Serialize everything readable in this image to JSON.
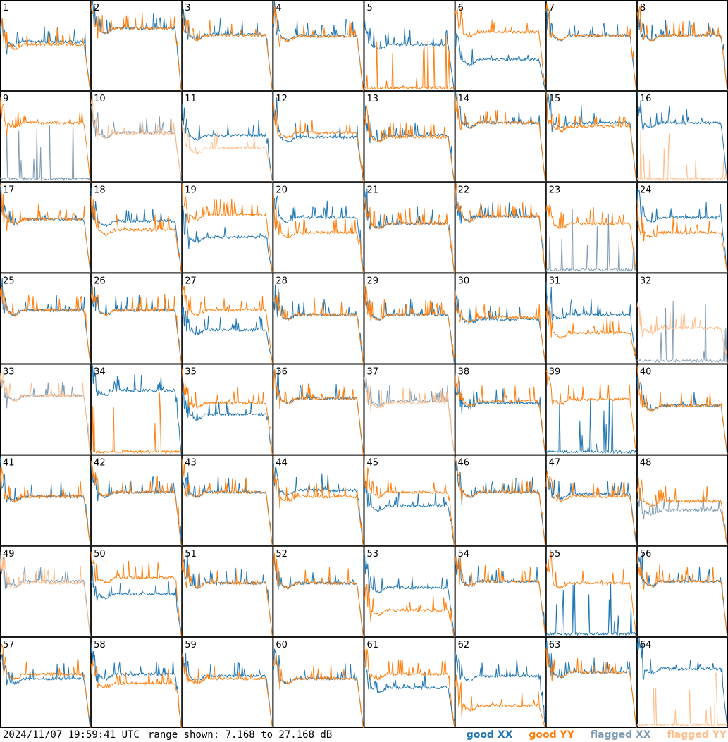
{
  "footer": {
    "timestamp": "2024/11/07 19:59:41 UTC",
    "range_label": "range shown: 7.168 to 27.168 dB"
  },
  "legend": [
    {
      "label": "good XX",
      "color": "#1f77b4"
    },
    {
      "label": "good YY",
      "color": "#ff7f0e"
    },
    {
      "label": "flagged XX",
      "color": "#7f9bb3"
    },
    {
      "label": "flagged YY",
      "color": "#ffbf8c"
    }
  ],
  "chart_data": {
    "type": "line",
    "grid": "8x8 small multiples",
    "xlabel": "",
    "ylabel": "",
    "ylim": [
      7.168,
      27.168
    ],
    "units": "dB",
    "panels": [
      {
        "id": "1",
        "xx": "good",
        "yy": "good",
        "xx_level": 0.55,
        "yy_level": 0.52,
        "dropout": []
      },
      {
        "id": "2",
        "xx": "good",
        "yy": "good",
        "xx_level": 0.7,
        "yy_level": 0.7,
        "dropout": []
      },
      {
        "id": "3",
        "xx": "good",
        "yy": "good",
        "xx_level": 0.63,
        "yy_level": 0.62,
        "dropout": []
      },
      {
        "id": "4",
        "xx": "good",
        "yy": "good",
        "xx_level": 0.62,
        "yy_level": 0.61,
        "dropout": []
      },
      {
        "id": "5",
        "xx": "good",
        "yy": "good",
        "xx_level": 0.52,
        "yy_level": 0.0,
        "dropout": [
          "yy"
        ]
      },
      {
        "id": "6",
        "xx": "good",
        "yy": "good",
        "xx_level": 0.35,
        "yy_level": 0.66,
        "dropout": []
      },
      {
        "id": "7",
        "xx": "good",
        "yy": "good",
        "xx_level": 0.62,
        "yy_level": 0.62,
        "dropout": []
      },
      {
        "id": "8",
        "xx": "good",
        "yy": "good",
        "xx_level": 0.62,
        "yy_level": 0.62,
        "dropout": []
      },
      {
        "id": "9",
        "xx": "flagged",
        "yy": "good",
        "xx_level": 0.0,
        "yy_level": 0.66,
        "dropout": [
          "xx"
        ]
      },
      {
        "id": "10",
        "xx": "flagged",
        "yy": "flagged",
        "xx_level": 0.55,
        "yy_level": 0.54,
        "dropout": []
      },
      {
        "id": "11",
        "xx": "good",
        "yy": "flagged",
        "xx_level": 0.52,
        "yy_level": 0.38,
        "dropout": []
      },
      {
        "id": "12",
        "xx": "good",
        "yy": "good",
        "xx_level": 0.5,
        "yy_level": 0.55,
        "dropout": []
      },
      {
        "id": "13",
        "xx": "good",
        "yy": "good",
        "xx_level": 0.52,
        "yy_level": 0.5,
        "dropout": []
      },
      {
        "id": "14",
        "xx": "good",
        "yy": "good",
        "xx_level": 0.66,
        "yy_level": 0.66,
        "dropout": []
      },
      {
        "id": "15",
        "xx": "good",
        "yy": "good",
        "xx_level": 0.66,
        "yy_level": 0.62,
        "dropout": []
      },
      {
        "id": "16",
        "xx": "good",
        "yy": "flagged",
        "xx_level": 0.66,
        "yy_level": 0.0,
        "dropout": [
          "yy"
        ]
      },
      {
        "id": "17",
        "xx": "good",
        "yy": "good",
        "xx_level": 0.6,
        "yy_level": 0.6,
        "dropout": []
      },
      {
        "id": "18",
        "xx": "good",
        "yy": "good",
        "xx_level": 0.58,
        "yy_level": 0.48,
        "dropout": []
      },
      {
        "id": "19",
        "xx": "good",
        "yy": "good",
        "xx_level": 0.4,
        "yy_level": 0.65,
        "dropout": []
      },
      {
        "id": "20",
        "xx": "good",
        "yy": "good",
        "xx_level": 0.62,
        "yy_level": 0.45,
        "dropout": []
      },
      {
        "id": "21",
        "xx": "good",
        "yy": "good",
        "xx_level": 0.55,
        "yy_level": 0.55,
        "dropout": []
      },
      {
        "id": "22",
        "xx": "good",
        "yy": "good",
        "xx_level": 0.63,
        "yy_level": 0.63,
        "dropout": []
      },
      {
        "id": "23",
        "xx": "flagged",
        "yy": "good",
        "xx_level": 0.0,
        "yy_level": 0.55,
        "dropout": [
          "xx"
        ]
      },
      {
        "id": "24",
        "xx": "good",
        "yy": "good",
        "xx_level": 0.62,
        "yy_level": 0.45,
        "dropout": []
      },
      {
        "id": "25",
        "xx": "good",
        "yy": "good",
        "xx_level": 0.6,
        "yy_level": 0.6,
        "dropout": []
      },
      {
        "id": "26",
        "xx": "good",
        "yy": "good",
        "xx_level": 0.6,
        "yy_level": 0.6,
        "dropout": []
      },
      {
        "id": "27",
        "xx": "good",
        "yy": "good",
        "xx_level": 0.38,
        "yy_level": 0.6,
        "dropout": []
      },
      {
        "id": "28",
        "xx": "good",
        "yy": "good",
        "xx_level": 0.55,
        "yy_level": 0.55,
        "dropout": []
      },
      {
        "id": "29",
        "xx": "good",
        "yy": "good",
        "xx_level": 0.55,
        "yy_level": 0.55,
        "dropout": []
      },
      {
        "id": "30",
        "xx": "good",
        "yy": "good",
        "xx_level": 0.5,
        "yy_level": 0.52,
        "dropout": []
      },
      {
        "id": "31",
        "xx": "good",
        "yy": "good",
        "xx_level": 0.55,
        "yy_level": 0.35,
        "dropout": []
      },
      {
        "id": "32",
        "xx": "flagged",
        "yy": "flagged",
        "xx_level": 0.0,
        "yy_level": 0.4,
        "dropout": [
          "xx"
        ]
      },
      {
        "id": "33",
        "xx": "flagged",
        "yy": "flagged",
        "xx_level": 0.66,
        "yy_level": 0.66,
        "dropout": []
      },
      {
        "id": "34",
        "xx": "good",
        "yy": "good",
        "xx_level": 0.72,
        "yy_level": 0.0,
        "dropout": [
          "yy"
        ]
      },
      {
        "id": "35",
        "xx": "good",
        "yy": "good",
        "xx_level": 0.45,
        "yy_level": 0.58,
        "dropout": []
      },
      {
        "id": "36",
        "xx": "good",
        "yy": "good",
        "xx_level": 0.63,
        "yy_level": 0.63,
        "dropout": []
      },
      {
        "id": "37",
        "xx": "flagged",
        "yy": "flagged",
        "xx_level": 0.6,
        "yy_level": 0.58,
        "dropout": []
      },
      {
        "id": "38",
        "xx": "good",
        "yy": "good",
        "xx_level": 0.58,
        "yy_level": 0.6,
        "dropout": []
      },
      {
        "id": "39",
        "xx": "good",
        "yy": "good",
        "xx_level": 0.0,
        "yy_level": 0.62,
        "dropout": [
          "xx"
        ]
      },
      {
        "id": "40",
        "xx": "good",
        "yy": "good",
        "xx_level": 0.55,
        "yy_level": 0.55,
        "dropout": []
      },
      {
        "id": "41",
        "xx": "good",
        "yy": "good",
        "xx_level": 0.55,
        "yy_level": 0.55,
        "dropout": []
      },
      {
        "id": "42",
        "xx": "good",
        "yy": "good",
        "xx_level": 0.6,
        "yy_level": 0.6,
        "dropout": []
      },
      {
        "id": "43",
        "xx": "good",
        "yy": "good",
        "xx_level": 0.6,
        "yy_level": 0.6,
        "dropout": []
      },
      {
        "id": "44",
        "xx": "good",
        "yy": "good",
        "xx_level": 0.62,
        "yy_level": 0.55,
        "dropout": []
      },
      {
        "id": "45",
        "xx": "good",
        "yy": "good",
        "xx_level": 0.45,
        "yy_level": 0.6,
        "dropout": []
      },
      {
        "id": "46",
        "xx": "good",
        "yy": "good",
        "xx_level": 0.6,
        "yy_level": 0.6,
        "dropout": []
      },
      {
        "id": "47",
        "xx": "good",
        "yy": "good",
        "xx_level": 0.58,
        "yy_level": 0.55,
        "dropout": []
      },
      {
        "id": "48",
        "xx": "flagged",
        "yy": "good",
        "xx_level": 0.4,
        "yy_level": 0.5,
        "dropout": []
      },
      {
        "id": "49",
        "xx": "flagged",
        "yy": "flagged",
        "xx_level": 0.62,
        "yy_level": 0.6,
        "dropout": []
      },
      {
        "id": "50",
        "xx": "good",
        "yy": "good",
        "xx_level": 0.48,
        "yy_level": 0.66,
        "dropout": []
      },
      {
        "id": "51",
        "xx": "good",
        "yy": "good",
        "xx_level": 0.6,
        "yy_level": 0.6,
        "dropout": []
      },
      {
        "id": "52",
        "xx": "good",
        "yy": "good",
        "xx_level": 0.6,
        "yy_level": 0.6,
        "dropout": []
      },
      {
        "id": "53",
        "xx": "good",
        "yy": "good",
        "xx_level": 0.55,
        "yy_level": 0.3,
        "dropout": []
      },
      {
        "id": "54",
        "xx": "good",
        "yy": "good",
        "xx_level": 0.62,
        "yy_level": 0.62,
        "dropout": []
      },
      {
        "id": "55",
        "xx": "good",
        "yy": "good",
        "xx_level": 0.0,
        "yy_level": 0.6,
        "dropout": [
          "xx"
        ]
      },
      {
        "id": "56",
        "xx": "good",
        "yy": "good",
        "xx_level": 0.62,
        "yy_level": 0.62,
        "dropout": []
      },
      {
        "id": "57",
        "xx": "good",
        "yy": "good",
        "xx_level": 0.55,
        "yy_level": 0.6,
        "dropout": []
      },
      {
        "id": "58",
        "xx": "good",
        "yy": "good",
        "xx_level": 0.6,
        "yy_level": 0.5,
        "dropout": []
      },
      {
        "id": "59",
        "xx": "good",
        "yy": "good",
        "xx_level": 0.58,
        "yy_level": 0.55,
        "dropout": []
      },
      {
        "id": "60",
        "xx": "good",
        "yy": "good",
        "xx_level": 0.55,
        "yy_level": 0.55,
        "dropout": []
      },
      {
        "id": "61",
        "xx": "good",
        "yy": "good",
        "xx_level": 0.45,
        "yy_level": 0.6,
        "dropout": []
      },
      {
        "id": "62",
        "xx": "good",
        "yy": "good",
        "xx_level": 0.58,
        "yy_level": 0.25,
        "dropout": []
      },
      {
        "id": "63",
        "xx": "good",
        "yy": "good",
        "xx_level": 0.62,
        "yy_level": 0.62,
        "dropout": []
      },
      {
        "id": "64",
        "xx": "good",
        "yy": "flagged",
        "xx_level": 0.66,
        "yy_level": 0.0,
        "dropout": [
          "yy"
        ]
      }
    ]
  }
}
